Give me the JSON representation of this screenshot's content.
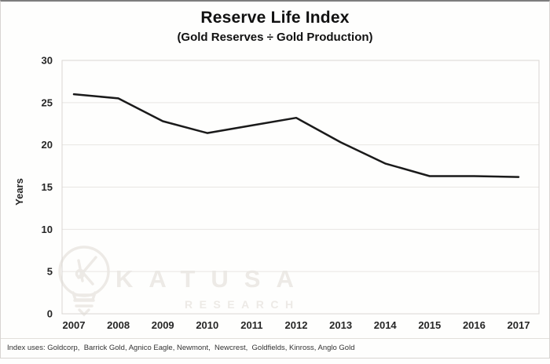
{
  "header": {
    "title": "Reserve Life Index",
    "subtitle": "(Gold Reserves ÷ Gold Production)"
  },
  "chart_data": {
    "type": "line",
    "title": "Reserve Life Index",
    "subtitle": "(Gold Reserves ÷ Gold Production)",
    "categories": [
      "2007",
      "2008",
      "2009",
      "2010",
      "2011",
      "2012",
      "2013",
      "2014",
      "2015",
      "2016",
      "2017"
    ],
    "values": [
      26.0,
      25.5,
      22.8,
      21.4,
      22.3,
      23.2,
      20.3,
      17.8,
      16.3,
      16.3,
      16.2
    ],
    "xlabel": "",
    "ylabel": "Years",
    "ylim": [
      0,
      30
    ],
    "yticks": [
      0,
      5,
      10,
      15,
      20,
      25,
      30
    ],
    "grid": true,
    "legend": false,
    "line_color": "#1a1a1a",
    "gridline_color": "#e8e6e3",
    "plot_border_color": "#d9d6d2"
  },
  "watermark": {
    "brand": "KATUSA",
    "sub": "RESEARCH",
    "icon": "lightbulb-k-logo",
    "color": "#edeae6"
  },
  "footnote": {
    "text": "Index uses: Goldcorp,  Barrick Gold, Agnico Eagle, Newmont,  Newcrest,  Goldfields, Kinross, Anglo Gold"
  }
}
